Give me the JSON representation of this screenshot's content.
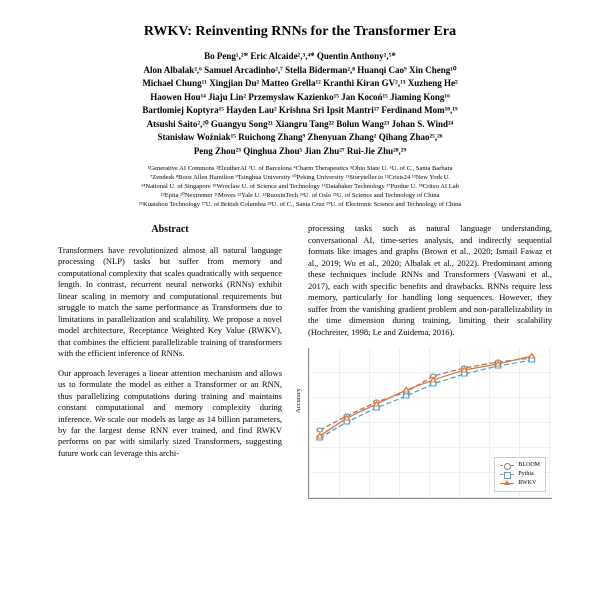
{
  "title": "RWKV: Reinventing RNNs for the Transformer Era",
  "authors_lines": [
    "Bo Peng¹,²*   Eric Alcaide²,³,⁴*   Quentin Anthony²,⁵*",
    "Alon Albalak²,⁶  Samuel Arcadinho²,⁷  Stella Biderman²,⁸  Huanqi Cao⁹  Xin Cheng¹⁰",
    "Michael Chung¹¹  Xingjian Du²  Matteo Grella¹²  Kranthi Kiran GV²,¹³  Xuzheng He²",
    "Haowen Hou¹⁴  Jiaju Lin²  Przemysław Kazienko¹⁵  Jan Kocoń¹⁵  Jiaming Kong¹⁶",
    "Bartłomiej Koptyra¹⁵  Hayden Lau²  Krishna Sri Ipsit Mantri¹⁷  Ferdinand Mom¹⁸,¹⁹",
    "Atsushi Saito²,²⁰  Guangyu Song²¹  Xiangru Tang²²  Bolun Wang²³  Johan S. Wind²⁴",
    "Stanisław Woźniak¹⁵  Ruichong Zhang⁹  Zhenyuan Zhang²  Qihang Zhao²⁵,²⁶",
    "Peng Zhou²³  Qinghua Zhou⁵  Jian Zhu²⁷  Rui-Jie Zhu²⁸,²⁹"
  ],
  "affiliations_lines": [
    "¹Generative AI Commons ²EleutherAI ³U. of Barcelona ⁴Charm Therapeutics ⁵Ohio State U. ⁶U. of C., Santa Barbara",
    "⁷Zendesk ⁸Booz Allen Hamilton ⁹Tsinghua University ¹⁰Peking University ¹¹Storyteller.io ¹²Crisis24 ¹³New York U.",
    "¹⁴National U. of Singapore ¹⁵Wroclaw U. of Science and Technology ¹⁶Databaker Technology ¹⁷Purdue U. ¹⁸Criteo AI Lab",
    "¹⁹Epita ²⁰Nextremer ²¹Moves ²²Yale U. ²³RuoxinTech ²⁴U. of Oslo ²⁵U. of Science and Technology of China",
    "²⁶Kuaishou Technology ²⁷U. of British Columbia ²⁸U. of C., Santa Cruz ²⁹U. of Electronic Science and Technology of China"
  ],
  "abstract_heading": "Abstract",
  "abstract_p1": "Transformers have revolutionized almost all natural language processing (NLP) tasks but suffer from memory and computational complexity that scales quadratically with sequence length. In contrast, recurrent neural networks (RNNs) exhibit linear scaling in memory and computational requirements but struggle to match the same performance as Transformers due to limitations in parallelization and scalability. We propose a novel model architecture, Receptance Weighted Key Value (RWKV), that combines the efficient parallelizable training of transformers with the efficient inference of RNNs.",
  "abstract_p2": "Our approach leverages a linear attention mechanism and allows us to formulate the model as either a Transformer or an RNN, thus parallelizing computations during training and maintains constant computational and memory complexity during inference. We scale our models as large as 14 billion parameters, by far the largest dense RNN ever trained, and find RWKV performs on par with similarly sized Transformers, suggesting future work can leverage this archi-",
  "right_p1": "processing tasks such as natural language understanding, conversational AI, time-series analysis, and indirectly sequential formats like images and graphs (Brown et al., 2020; Ismail Fawaz et al., 2019; Wu et al., 2020; Albalak et al., 2022). Predominant among these techniques include RNNs and Transformers (Vaswani et al., 2017), each with specific benefits and drawbacks. RNNs require less memory, particularly for handling long sequences. However, they suffer from the vanishing gradient problem and non-parallelizability in the time dimension during training, limiting their scalability (Hochreiter, 1998; Le and Zuidema, 2016).",
  "chart": {
    "ylabel": "Accuracy",
    "series": [
      {
        "name": "BLOOM",
        "color": "#808080",
        "dash": "4,2",
        "marker": "circle",
        "points": [
          [
            8,
            82
          ],
          [
            28,
            68
          ],
          [
            50,
            54
          ],
          [
            72,
            44
          ],
          [
            92,
            28
          ],
          [
            115,
            20
          ],
          [
            140,
            14
          ],
          [
            165,
            10
          ]
        ]
      },
      {
        "name": "Pythia",
        "color": "#4a9eda",
        "dash": "4,2",
        "marker": "square",
        "points": [
          [
            8,
            90
          ],
          [
            28,
            74
          ],
          [
            50,
            60
          ],
          [
            72,
            48
          ],
          [
            92,
            36
          ],
          [
            115,
            26
          ],
          [
            140,
            18
          ],
          [
            165,
            12
          ]
        ]
      },
      {
        "name": "RWKV",
        "color": "#e8732c",
        "dash": "0",
        "marker": "triangle",
        "points": [
          [
            8,
            88
          ],
          [
            28,
            70
          ],
          [
            50,
            56
          ],
          [
            72,
            42
          ],
          [
            92,
            32
          ],
          [
            115,
            22
          ],
          [
            140,
            16
          ],
          [
            165,
            8
          ]
        ]
      }
    ]
  }
}
